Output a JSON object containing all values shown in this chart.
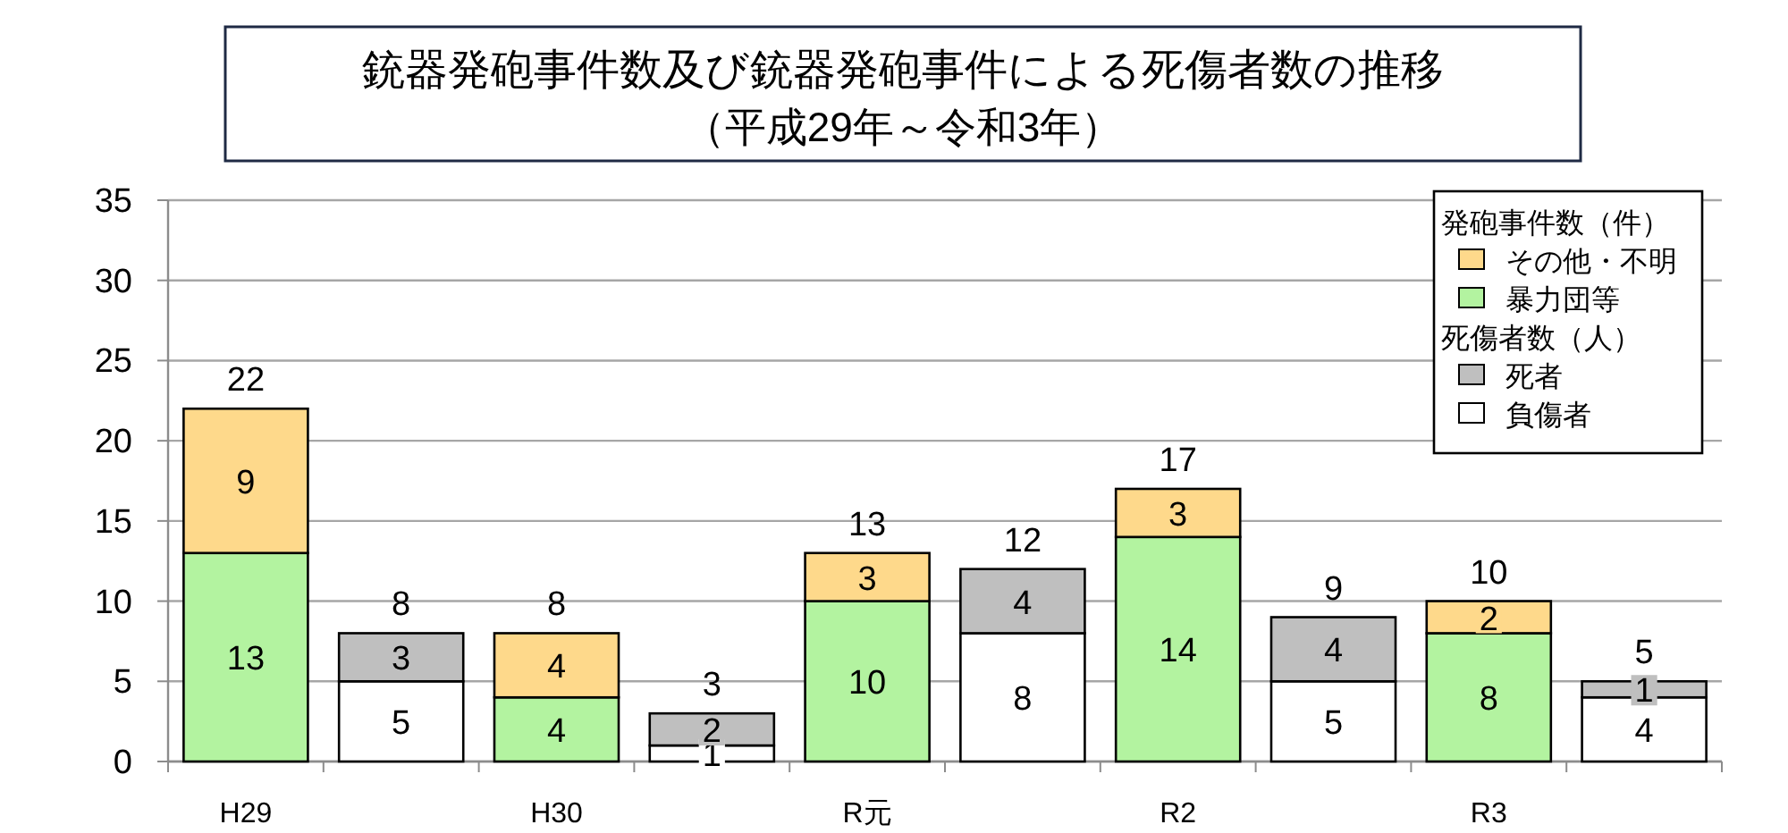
{
  "chart_data": {
    "type": "bar",
    "title": "銃器発砲事件数及び銃器発砲事件による死傷者数の推移",
    "subtitle": "（平成29年～令和3年）",
    "categories": [
      "H29",
      null,
      "H30",
      null,
      "R元",
      null,
      "R2",
      null,
      "R3",
      null
    ],
    "stacked": true,
    "series": [
      {
        "name": "暴力団等",
        "color": "#b3f3a0",
        "values": [
          13,
          null,
          4,
          null,
          10,
          null,
          14,
          null,
          8,
          null
        ]
      },
      {
        "name": "その他・不明",
        "color": "#fed98b",
        "values": [
          9,
          null,
          4,
          null,
          3,
          null,
          3,
          null,
          2,
          null
        ]
      },
      {
        "name": "負傷者",
        "color": "#ffffff",
        "values": [
          null,
          5,
          null,
          1,
          null,
          8,
          null,
          5,
          null,
          4
        ]
      },
      {
        "name": "死者",
        "color": "#bfbfbf",
        "values": [
          null,
          3,
          null,
          2,
          null,
          4,
          null,
          4,
          null,
          1
        ]
      }
    ],
    "totals": [
      "22",
      "8",
      "8",
      "3",
      "13",
      "12",
      "17",
      "9",
      "10",
      "5"
    ],
    "data_labels": true,
    "ylim": [
      0,
      35
    ],
    "yticks": [
      0,
      5,
      10,
      15,
      20,
      25,
      30,
      35
    ],
    "grid": "y",
    "legend": "top right",
    "annotations": [
      "発砲事件数（件）",
      "死傷者数（人）"
    ]
  }
}
